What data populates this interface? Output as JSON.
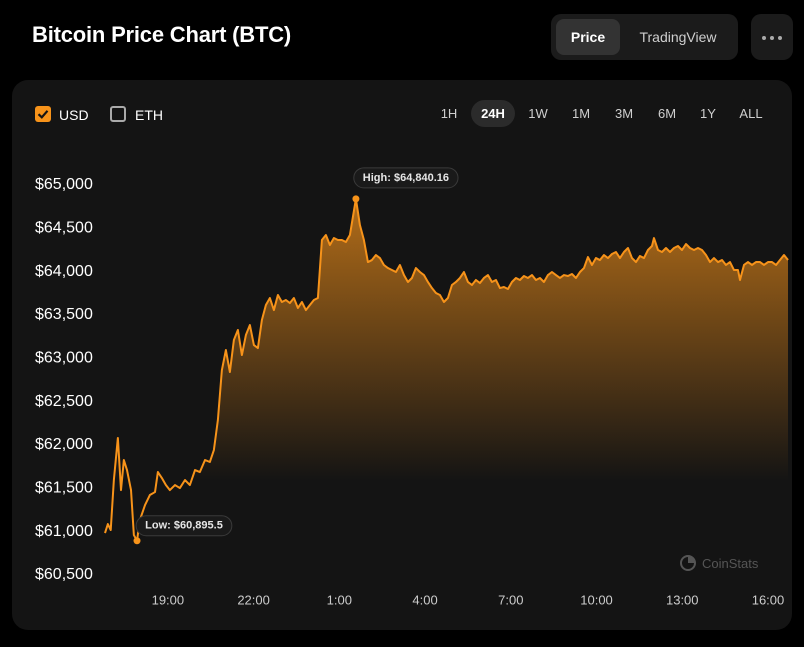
{
  "header": {
    "title": "Bitcoin Price Chart (BTC)",
    "tabs": [
      "Price",
      "TradingView"
    ],
    "selected_tab": 0
  },
  "controls": {
    "currencies": [
      "USD",
      "ETH"
    ],
    "checked": [
      true,
      false
    ],
    "ranges": [
      "1H",
      "24H",
      "1W",
      "1M",
      "3M",
      "6M",
      "1Y",
      "ALL"
    ],
    "selected_range": 1
  },
  "watermark": "CoinStats",
  "chart_data": {
    "type": "line",
    "color": "#f7931a",
    "area": true,
    "grid": false,
    "xlim": [
      16.8,
      40.7
    ],
    "ylim": [
      60500,
      65000
    ],
    "xticks": [
      {
        "value": 19,
        "label": "19:00"
      },
      {
        "value": 22,
        "label": "22:00"
      },
      {
        "value": 25,
        "label": "1:00"
      },
      {
        "value": 28,
        "label": "4:00"
      },
      {
        "value": 31,
        "label": "7:00"
      },
      {
        "value": 34,
        "label": "10:00"
      },
      {
        "value": 37,
        "label": "13:00"
      },
      {
        "value": 40,
        "label": "16:00"
      }
    ],
    "yticks": [
      {
        "value": 65000,
        "label": "$65,000"
      },
      {
        "value": 64500,
        "label": "$64,500"
      },
      {
        "value": 64000,
        "label": "$64,000"
      },
      {
        "value": 63500,
        "label": "$63,500"
      },
      {
        "value": 63000,
        "label": "$63,000"
      },
      {
        "value": 62500,
        "label": "$62,500"
      },
      {
        "value": 62000,
        "label": "$62,000"
      },
      {
        "value": 61500,
        "label": "$61,500"
      },
      {
        "value": 61000,
        "label": "$61,000"
      },
      {
        "value": 60500,
        "label": "$60,500"
      }
    ],
    "annotations": [
      {
        "label": "High: $64,840.16",
        "x": 25.58,
        "y": 64840.16
      },
      {
        "label": "Low: $60,895.5",
        "x": 17.92,
        "y": 60895.5
      }
    ],
    "x": [
      16.8,
      16.9,
      17.0,
      17.11,
      17.25,
      17.36,
      17.46,
      17.57,
      17.71,
      17.81,
      17.92,
      18.02,
      18.2,
      18.37,
      18.55,
      18.65,
      18.79,
      18.93,
      19.07,
      19.25,
      19.42,
      19.6,
      19.77,
      19.95,
      20.12,
      20.3,
      20.47,
      20.61,
      20.75,
      20.89,
      21.03,
      21.17,
      21.31,
      21.45,
      21.59,
      21.73,
      21.87,
      22.01,
      22.15,
      22.29,
      22.43,
      22.57,
      22.71,
      22.85,
      22.99,
      23.13,
      23.27,
      23.41,
      23.55,
      23.69,
      23.83,
      23.97,
      24.11,
      24.25,
      24.39,
      24.53,
      24.67,
      24.81,
      24.95,
      25.09,
      25.23,
      25.37,
      25.58,
      25.72,
      25.86,
      26.0,
      26.14,
      26.28,
      26.42,
      26.56,
      26.7,
      26.84,
      26.98,
      27.12,
      27.26,
      27.4,
      27.54,
      27.68,
      27.82,
      27.96,
      28.1,
      28.24,
      28.38,
      28.52,
      28.66,
      28.8,
      28.94,
      29.08,
      29.22,
      29.36,
      29.5,
      29.64,
      29.78,
      29.92,
      30.06,
      30.2,
      30.34,
      30.48,
      30.62,
      30.76,
      30.9,
      31.04,
      31.18,
      31.32,
      31.46,
      31.6,
      31.74,
      31.88,
      32.02,
      32.16,
      32.3,
      32.44,
      32.58,
      32.72,
      32.86,
      33.0,
      33.14,
      33.28,
      33.42,
      33.56,
      33.7,
      33.84,
      33.98,
      34.12,
      34.26,
      34.4,
      34.54,
      34.68,
      34.82,
      34.96,
      35.1,
      35.24,
      35.38,
      35.52,
      35.66,
      35.8,
      35.94,
      36.01,
      36.15,
      36.29,
      36.43,
      36.57,
      36.71,
      36.85,
      36.99,
      37.13,
      37.27,
      37.41,
      37.55,
      37.69,
      37.83,
      37.97,
      38.11,
      38.25,
      38.39,
      38.53,
      38.67,
      38.81,
      38.95,
      39.02,
      39.16,
      39.3,
      39.44,
      39.58,
      39.72,
      39.86,
      40.0,
      40.14,
      40.28,
      40.42,
      40.56,
      40.7
    ],
    "series": [
      {
        "name": "BTC",
        "values": [
          60984,
          61088,
          61019,
          61596,
          62081,
          61480,
          61827,
          61711,
          61480,
          60961,
          60895.5,
          61134,
          61307,
          61423,
          61457,
          61688,
          61619,
          61538,
          61480,
          61538,
          61503,
          61596,
          61538,
          61711,
          61688,
          61827,
          61804,
          61942,
          62288,
          62865,
          63096,
          62842,
          63211,
          63327,
          63038,
          63269,
          63384,
          63153,
          63119,
          63442,
          63615,
          63696,
          63557,
          63731,
          63650,
          63673,
          63638,
          63696,
          63581,
          63650,
          63557,
          63615,
          63673,
          63696,
          64365,
          64423,
          64308,
          64388,
          64365,
          64365,
          64342,
          64423,
          64840.16,
          64538,
          64365,
          64111,
          64134,
          64192,
          64157,
          64077,
          64042,
          64019,
          63996,
          64077,
          63961,
          63881,
          63927,
          64042,
          63996,
          63961,
          63881,
          63811,
          63754,
          63731,
          63650,
          63696,
          63846,
          63881,
          63927,
          63996,
          63881,
          63846,
          63904,
          63869,
          63927,
          63961,
          63881,
          63904,
          63811,
          63823,
          63800,
          63881,
          63927,
          63904,
          63950,
          63927,
          63961,
          63904,
          63927,
          63881,
          63961,
          63996,
          63961,
          63927,
          63961,
          63950,
          63973,
          63927,
          63996,
          64042,
          64169,
          64077,
          64157,
          64134,
          64192,
          64157,
          64204,
          64227,
          64157,
          64227,
          64273,
          64157,
          64111,
          64181,
          64157,
          64250,
          64296,
          64388,
          64250,
          64227,
          64273,
          64227,
          64273,
          64296,
          64250,
          64319,
          64273,
          64250,
          64273,
          64250,
          64192,
          64111,
          64157,
          64111,
          64134,
          64077,
          64111,
          64019,
          64019,
          63904,
          64077,
          64111,
          64077,
          64111,
          64111,
          64077,
          64111,
          64111,
          64077,
          64134,
          64192,
          64134
        ]
      }
    ]
  }
}
